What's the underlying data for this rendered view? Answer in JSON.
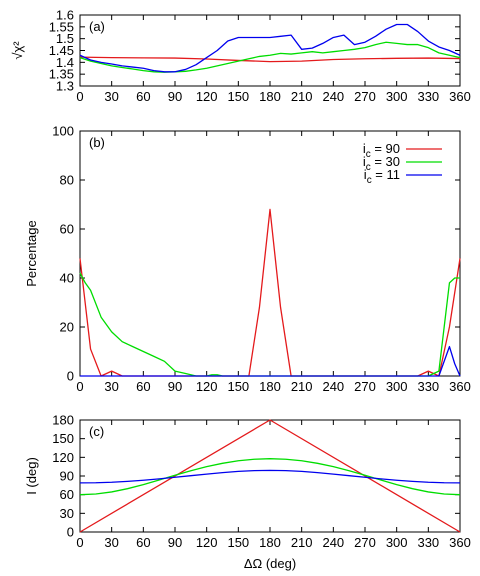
{
  "colors": {
    "red": "#e41a1c",
    "green": "#00dd00",
    "blue": "#0000ee"
  },
  "chart_data": [
    {
      "type": "line",
      "panel_label": "(a)",
      "ylabel": "√χ²",
      "xlim": [
        0,
        360
      ],
      "ylim": [
        1.3,
        1.6
      ],
      "xticks": [
        0,
        30,
        60,
        90,
        120,
        150,
        180,
        210,
        240,
        270,
        300,
        330,
        360
      ],
      "yticks": [
        1.3,
        1.35,
        1.4,
        1.45,
        1.5,
        1.55,
        1.6
      ],
      "ytick_labels": [
        "1.3",
        "1.35",
        "1.4",
        "1.45",
        "1.5",
        "1.55",
        "1.6"
      ],
      "series": [
        {
          "color": "red",
          "x": [
            0,
            30,
            60,
            90,
            120,
            150,
            180,
            210,
            240,
            270,
            300,
            330,
            360
          ],
          "y": [
            1.422,
            1.42,
            1.419,
            1.418,
            1.414,
            1.408,
            1.403,
            1.405,
            1.412,
            1.415,
            1.417,
            1.418,
            1.416
          ]
        },
        {
          "color": "green",
          "x": [
            0,
            10,
            20,
            30,
            40,
            50,
            60,
            70,
            80,
            90,
            100,
            110,
            120,
            130,
            140,
            150,
            160,
            170,
            180,
            190,
            200,
            210,
            220,
            230,
            240,
            250,
            260,
            270,
            280,
            290,
            300,
            310,
            320,
            330,
            340,
            350,
            360
          ],
          "y": [
            1.42,
            1.405,
            1.395,
            1.385,
            1.378,
            1.372,
            1.365,
            1.36,
            1.358,
            1.36,
            1.362,
            1.368,
            1.375,
            1.385,
            1.395,
            1.405,
            1.415,
            1.425,
            1.43,
            1.438,
            1.435,
            1.44,
            1.445,
            1.44,
            1.445,
            1.45,
            1.455,
            1.462,
            1.475,
            1.485,
            1.48,
            1.475,
            1.475,
            1.462,
            1.44,
            1.43,
            1.42
          ]
        },
        {
          "color": "blue",
          "x": [
            0,
            10,
            20,
            30,
            40,
            50,
            60,
            70,
            80,
            90,
            100,
            110,
            120,
            130,
            140,
            150,
            160,
            170,
            180,
            190,
            200,
            210,
            220,
            230,
            240,
            250,
            260,
            270,
            280,
            290,
            300,
            310,
            320,
            330,
            340,
            350,
            360
          ],
          "y": [
            1.43,
            1.41,
            1.4,
            1.393,
            1.385,
            1.38,
            1.375,
            1.365,
            1.36,
            1.36,
            1.37,
            1.39,
            1.42,
            1.45,
            1.49,
            1.505,
            1.505,
            1.505,
            1.505,
            1.51,
            1.515,
            1.455,
            1.46,
            1.48,
            1.505,
            1.515,
            1.475,
            1.485,
            1.51,
            1.54,
            1.56,
            1.56,
            1.53,
            1.49,
            1.465,
            1.45,
            1.43
          ]
        }
      ]
    },
    {
      "type": "line",
      "panel_label": "(b)",
      "ylabel": "Percentage",
      "xlim": [
        0,
        360
      ],
      "ylim": [
        0,
        100
      ],
      "xticks": [
        0,
        30,
        60,
        90,
        120,
        150,
        180,
        210,
        240,
        270,
        300,
        330,
        360
      ],
      "yticks": [
        0,
        20,
        40,
        60,
        80,
        100
      ],
      "ytick_labels": [
        "0",
        "20",
        "40",
        "60",
        "80",
        "100"
      ],
      "legend_position": "top-right",
      "series": [
        {
          "color": "red",
          "legend_main": "i",
          "legend_sub": "c",
          "legend_value": " = 90",
          "x": [
            0,
            10,
            20,
            30,
            40,
            50,
            160,
            170,
            180,
            190,
            200,
            320,
            330,
            340,
            350,
            360
          ],
          "y": [
            48,
            11,
            0,
            2,
            0,
            0,
            0,
            28,
            68,
            28,
            0,
            0,
            2,
            0,
            20,
            48
          ]
        },
        {
          "color": "green",
          "legend_main": "i",
          "legend_sub": "c",
          "legend_value": " = 30",
          "x": [
            0,
            5,
            10,
            20,
            30,
            40,
            50,
            60,
            70,
            80,
            90,
            100,
            110,
            120,
            125,
            130,
            135,
            140,
            200,
            330,
            340,
            345,
            350,
            355,
            360
          ],
          "y": [
            42,
            38,
            35,
            24,
            18,
            14,
            12,
            10,
            8,
            6,
            2,
            1,
            0,
            0,
            0.5,
            0.5,
            0,
            0,
            0,
            0,
            2,
            20,
            38,
            40,
            40
          ]
        },
        {
          "color": "blue",
          "legend_main": "i",
          "legend_sub": "c",
          "legend_value": " = 11",
          "x": [
            0,
            10,
            100,
            330,
            340,
            350,
            355,
            360
          ],
          "y": [
            0,
            0,
            0,
            0,
            0,
            12,
            5,
            0
          ]
        }
      ]
    },
    {
      "type": "line",
      "panel_label": "(c)",
      "xlabel": "ΔΩ (deg)",
      "ylabel": "I (deg)",
      "xlim": [
        0,
        360
      ],
      "ylim": [
        0,
        180
      ],
      "xticks": [
        0,
        30,
        60,
        90,
        120,
        150,
        180,
        210,
        240,
        270,
        300,
        330,
        360
      ],
      "yticks": [
        0,
        30,
        60,
        90,
        120,
        150,
        180
      ],
      "ytick_labels": [
        "0",
        "30",
        "60",
        "90",
        "120",
        "150",
        "180"
      ],
      "series": [
        {
          "color": "red",
          "x": [
            0,
            180,
            360
          ],
          "y": [
            0,
            180,
            0
          ]
        },
        {
          "color": "green",
          "x": [
            0,
            15,
            30,
            45,
            60,
            75,
            90,
            105,
            120,
            135,
            150,
            165,
            180,
            195,
            210,
            225,
            240,
            255,
            270,
            285,
            300,
            315,
            330,
            345,
            360
          ],
          "y": [
            60,
            61.1,
            64.4,
            69.6,
            76.2,
            83.6,
            91.2,
            98.5,
            105,
            110.4,
            114.5,
            116.9,
            117.8,
            116.9,
            114.5,
            110.4,
            105,
            98.5,
            91.2,
            83.6,
            76.2,
            69.6,
            64.4,
            61.1,
            60
          ]
        },
        {
          "color": "blue",
          "x": [
            0,
            15,
            30,
            45,
            60,
            75,
            90,
            105,
            120,
            135,
            150,
            165,
            180,
            195,
            210,
            225,
            240,
            255,
            270,
            285,
            300,
            315,
            330,
            345,
            360
          ],
          "y": [
            79,
            79.2,
            80,
            81.4,
            83.2,
            85.4,
            88,
            90.5,
            93,
            95.4,
            97.4,
            98.6,
            99,
            98.6,
            97.4,
            95.4,
            93,
            90.5,
            88,
            85.4,
            83.2,
            81.4,
            80,
            79.2,
            79
          ]
        }
      ]
    }
  ]
}
